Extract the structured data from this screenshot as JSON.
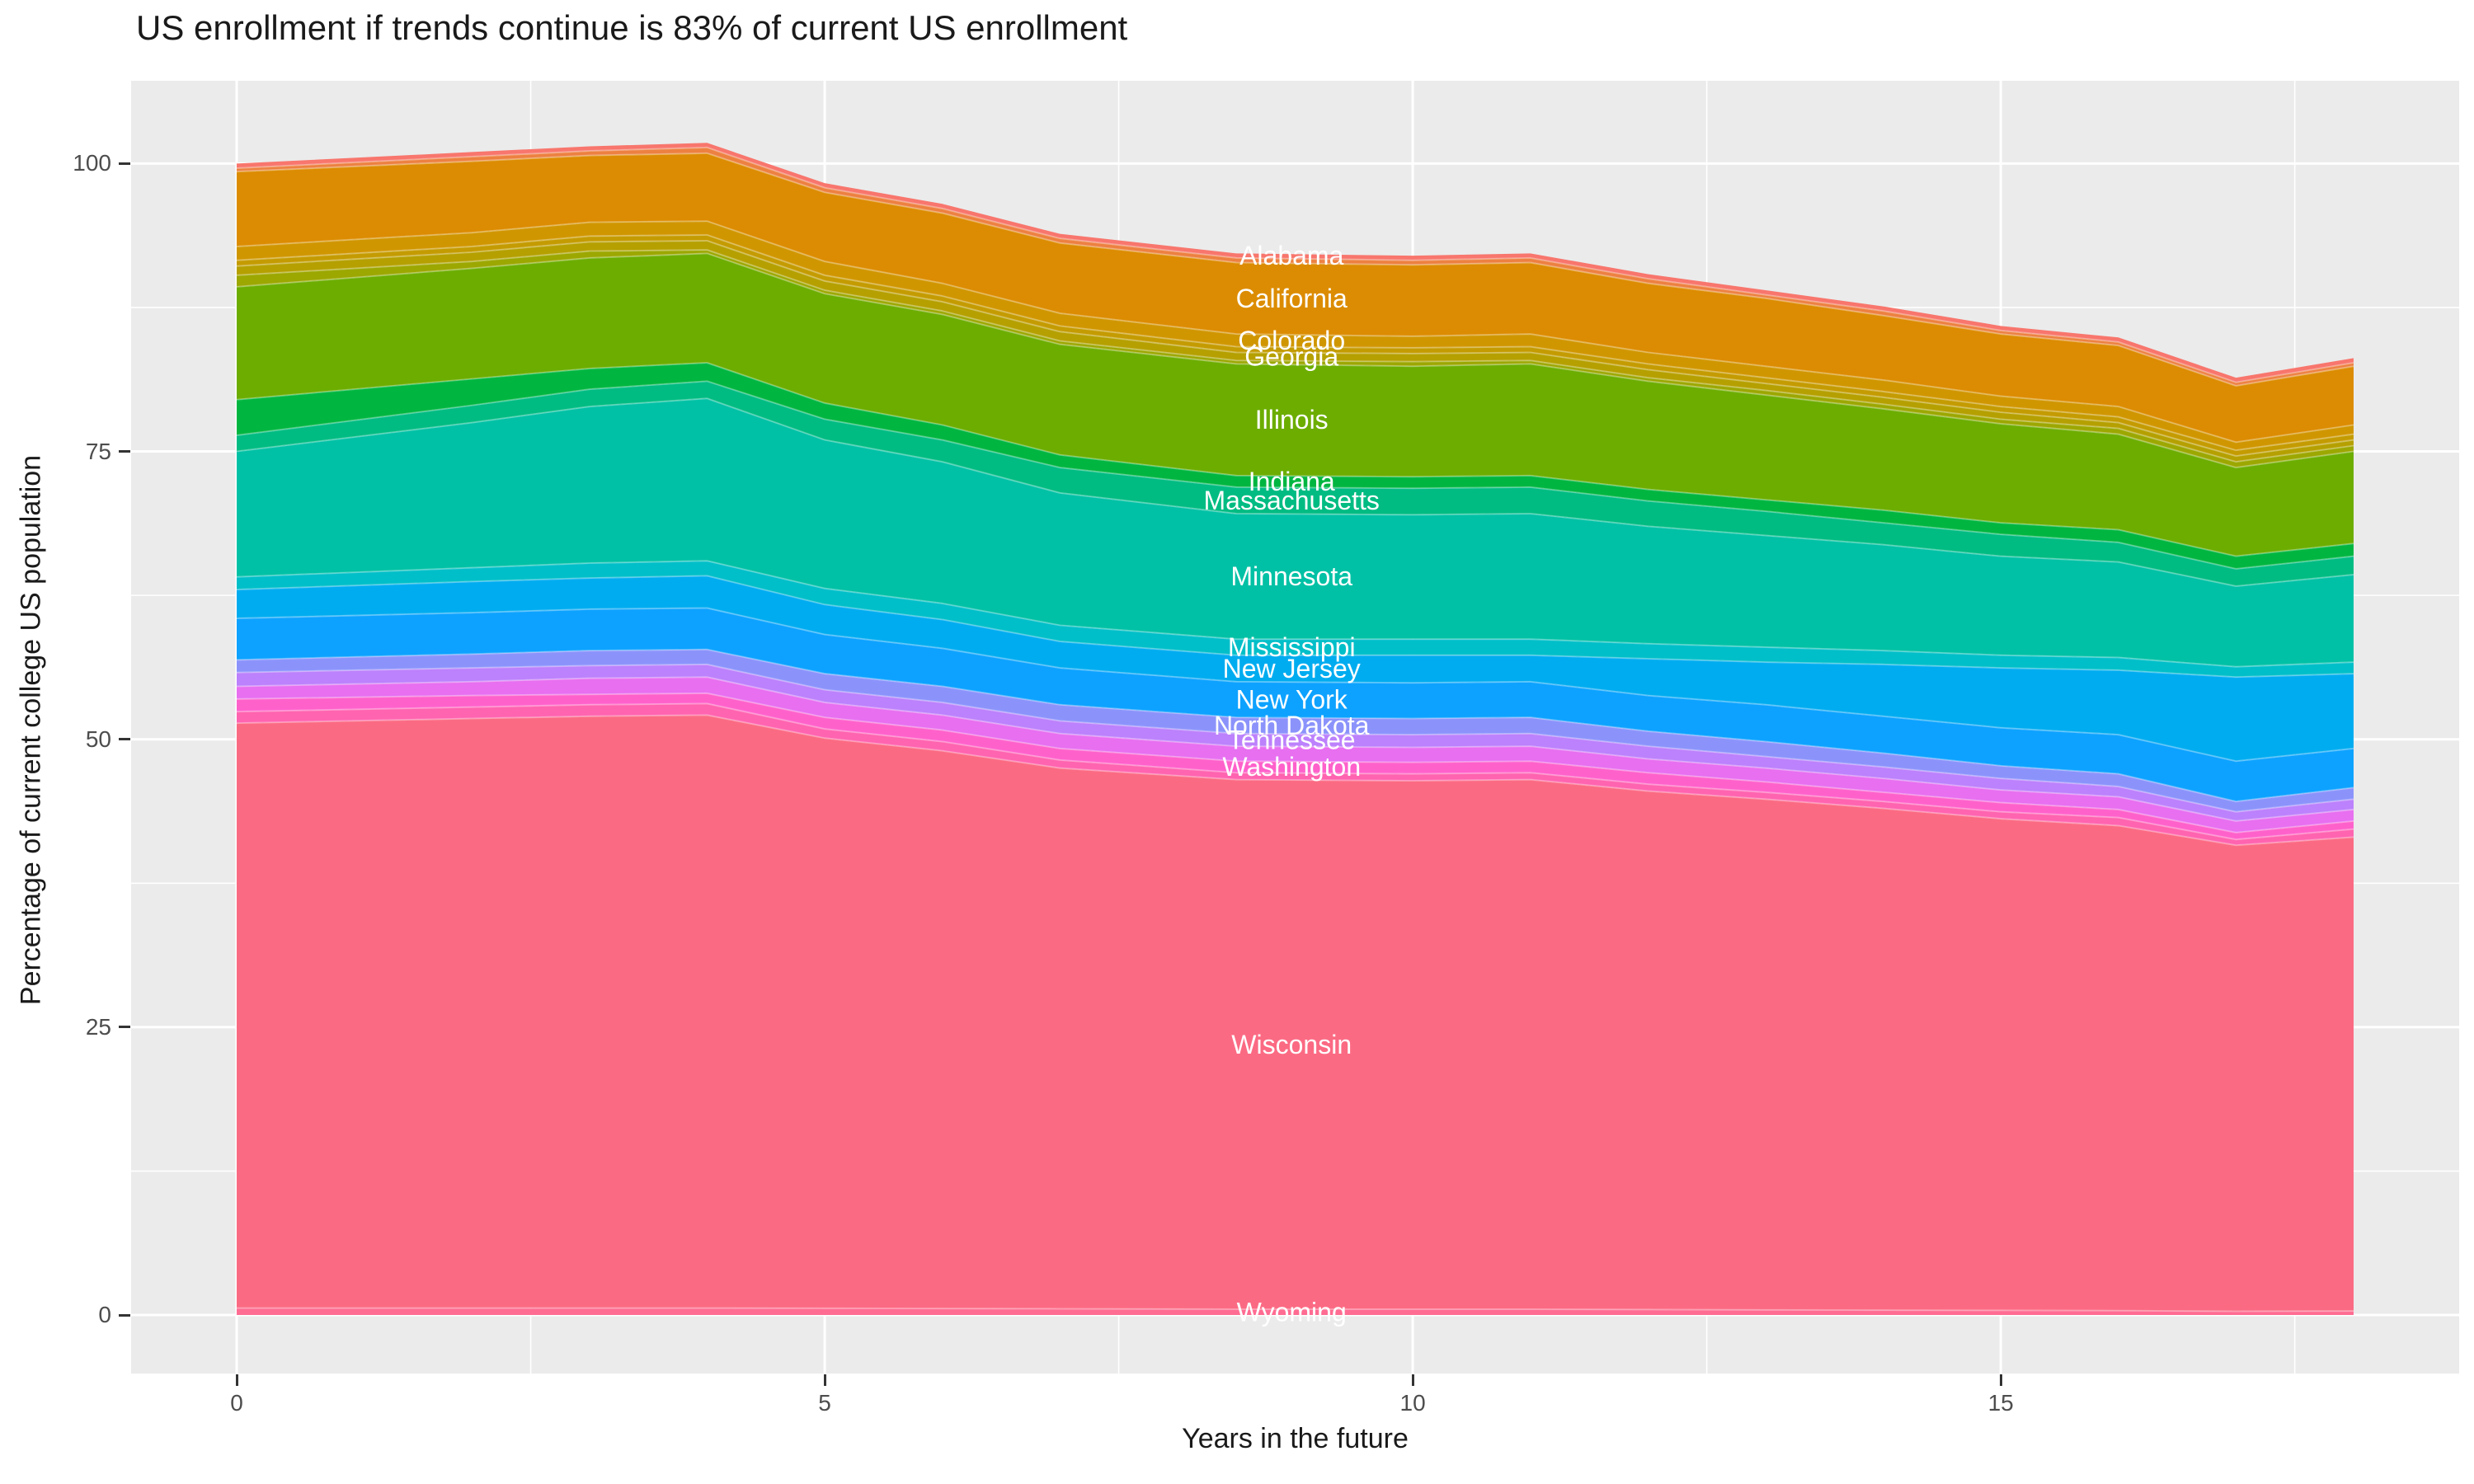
{
  "title": "US enrollment if trends continue is 83% of current US enrollment",
  "panel": {
    "bg": "#EBEBEB",
    "grid_color": "#FFFFFF",
    "tick_color": "#333333",
    "tick_label_color": "#4D4D4D"
  },
  "chart_data": {
    "type": "area",
    "stacked": true,
    "title": "US enrollment if trends continue is 83% of current US enrollment",
    "xlabel": "Years in the future",
    "ylabel": "Percentage of current college US population",
    "legend_position": "none",
    "grid": "on",
    "xlim": [
      -0.9,
      18.9
    ],
    "ylim": [
      -7,
      112
    ],
    "x_ticks": [
      0,
      5,
      10,
      15
    ],
    "y_ticks": [
      0,
      25,
      50,
      75,
      100
    ],
    "x_minor_ticks": [
      2.5,
      7.5,
      12.5,
      17.5
    ],
    "y_minor_ticks": [
      12.5,
      37.5,
      62.5,
      87.5
    ],
    "label_x": 8.97,
    "label_color": "#FFFFFF",
    "x": [
      0,
      2,
      3,
      4,
      5,
      6,
      7,
      8.5,
      10,
      11,
      12,
      13,
      14,
      15,
      16,
      17,
      18
    ],
    "bands_note": "bands ordered top to bottom; 'top' is the cumulative upper boundary (percent) at each x; each band fills down to the next band's top, last band fills to 0",
    "bands": [
      {
        "name": "Alabama",
        "label": "Alabama",
        "color": "#F8766D",
        "top": [
          100,
          101,
          101.5,
          101.8,
          98.3,
          96.5,
          93.9,
          92.2,
          92,
          92.2,
          90.4,
          89,
          87.6,
          85.9,
          84.9,
          81.4,
          83.1
        ]
      },
      {
        "name": "unlabeled-1",
        "label": "",
        "color": "#ED8141",
        "top": [
          99.6,
          100.6,
          101.1,
          101.4,
          97.9,
          96.1,
          93.5,
          91.8,
          91.6,
          91.8,
          90,
          88.6,
          87.2,
          85.5,
          84.5,
          81,
          82.7
        ]
      },
      {
        "name": "California",
        "label": "California",
        "color": "#DC8C02",
        "top": [
          99.3,
          100.2,
          100.7,
          100.9,
          97.5,
          95.7,
          93.1,
          91.4,
          91.2,
          91.4,
          89.6,
          88.3,
          86.8,
          85.2,
          84.2,
          80.7,
          82.4
        ]
      },
      {
        "name": "Colorado",
        "label": "Colorado",
        "color": "#D09600",
        "top": [
          92.8,
          94,
          94.9,
          95,
          91.5,
          89.6,
          87,
          85.2,
          85,
          85.2,
          83.6,
          82.4,
          81.2,
          79.8,
          78.9,
          75.8,
          77.3
        ]
      },
      {
        "name": "unlabeled-2",
        "label": "",
        "color": "#C49B00",
        "top": [
          91.6,
          92.8,
          93.7,
          93.8,
          90.3,
          88.5,
          85.9,
          84.1,
          84,
          84.1,
          82.6,
          81.4,
          80.2,
          78.9,
          78,
          75.1,
          76.5
        ]
      },
      {
        "name": "Georgia",
        "label": "Georgia",
        "color": "#B5A000",
        "top": [
          91.1,
          92.3,
          93.2,
          93.3,
          89.8,
          88,
          85.4,
          83.6,
          83.5,
          83.6,
          82.1,
          80.9,
          79.7,
          78.4,
          77.5,
          74.6,
          76
        ]
      },
      {
        "name": "unlabeled-3",
        "label": "",
        "color": "#9CA700",
        "top": [
          90.3,
          91.5,
          92.4,
          92.5,
          89,
          87.2,
          84.6,
          82.9,
          82.8,
          82.9,
          81.4,
          80.3,
          79.1,
          77.8,
          77,
          74.1,
          75.5
        ]
      },
      {
        "name": "Illinois",
        "label": "Illinois",
        "color": "#6CAD00",
        "top": [
          89.3,
          90.9,
          91.8,
          92.2,
          88.7,
          86.9,
          84.3,
          82.6,
          82.4,
          82.6,
          81.1,
          79.9,
          78.7,
          77.4,
          76.5,
          73.6,
          75
        ]
      },
      {
        "name": "Indiana",
        "label": "Indiana",
        "color": "#00B640",
        "top": [
          79.5,
          81.3,
          82.2,
          82.7,
          79.2,
          77.3,
          74.7,
          72.9,
          72.8,
          72.9,
          71.7,
          70.8,
          69.9,
          68.8,
          68.2,
          65.9,
          67
        ]
      },
      {
        "name": "Massachusetts",
        "label": "Massachusetts",
        "color": "#00BC82",
        "top": [
          76.4,
          79,
          80.4,
          81.1,
          77.8,
          76,
          73.6,
          71.9,
          71.8,
          71.9,
          70.7,
          69.8,
          68.8,
          67.8,
          67.1,
          64.8,
          65.9
        ]
      },
      {
        "name": "Minnesota",
        "label": "Minnesota",
        "color": "#00C1A5",
        "top": [
          75,
          77.5,
          78.9,
          79.6,
          76,
          74.1,
          71.4,
          69.6,
          69.5,
          69.6,
          68.5,
          67.7,
          66.9,
          65.9,
          65.4,
          63.3,
          64.3
        ]
      },
      {
        "name": "Mississippi",
        "label": "Mississippi",
        "color": "#00BFC8",
        "top": [
          64.1,
          64.9,
          65.3,
          65.5,
          63.1,
          61.8,
          59.9,
          58.7,
          58.7,
          58.7,
          58.3,
          58,
          57.7,
          57.3,
          57.1,
          56.3,
          56.7
        ]
      },
      {
        "name": "New Jersey",
        "label": "New Jersey",
        "color": "#00ACF0",
        "top": [
          63,
          63.7,
          64,
          64.2,
          61.7,
          60.4,
          58.5,
          57.3,
          57.3,
          57.3,
          57,
          56.7,
          56.5,
          56.2,
          56,
          55.4,
          55.7
        ]
      },
      {
        "name": "New York",
        "label": "New York",
        "color": "#0DA2FF",
        "top": [
          60.5,
          61,
          61.3,
          61.4,
          59.1,
          57.9,
          56.2,
          55,
          54.9,
          55,
          53.8,
          53,
          52,
          51,
          50.4,
          48.1,
          49.2
        ]
      },
      {
        "name": "North Dakota",
        "label": "North Dakota",
        "color": "#8B93FB",
        "top": [
          56.9,
          57.4,
          57.7,
          57.8,
          55.7,
          54.6,
          53,
          51.9,
          51.8,
          51.9,
          50.7,
          49.8,
          48.8,
          47.7,
          47,
          44.6,
          45.8
        ]
      },
      {
        "name": "Tennessee",
        "label": "Tennessee",
        "color": "#BC81FC",
        "top": [
          55.8,
          56.2,
          56.4,
          56.5,
          54.3,
          53.2,
          51.6,
          50.5,
          50.4,
          50.5,
          49.4,
          48.5,
          47.6,
          46.6,
          45.9,
          43.7,
          44.8
        ]
      },
      {
        "name": "unlabeled-4",
        "label": "",
        "color": "#E76FF0",
        "top": [
          54.6,
          55,
          55.3,
          55.4,
          53.2,
          52.1,
          50.5,
          49.4,
          49.3,
          49.4,
          48.3,
          47.5,
          46.6,
          45.6,
          45,
          42.9,
          43.9
        ]
      },
      {
        "name": "Washington",
        "label": "Washington",
        "color": "#FF61CB",
        "top": [
          53.5,
          53.8,
          53.9,
          54,
          51.9,
          50.8,
          49.2,
          48.1,
          48,
          48.1,
          47.1,
          46.3,
          45.4,
          44.5,
          43.9,
          41.9,
          42.9
        ]
      },
      {
        "name": "unlabeled-5",
        "label": "",
        "color": "#FF64B0",
        "top": [
          52.4,
          52.8,
          53,
          53.1,
          50.9,
          49.8,
          48.2,
          47.1,
          47,
          47.1,
          46.1,
          45.4,
          44.6,
          43.7,
          43.2,
          41.3,
          42.2
        ]
      },
      {
        "name": "Wisconsin",
        "label": "Wisconsin",
        "color": "#FB6A83",
        "top": [
          51.4,
          51.8,
          52,
          52.1,
          50.1,
          49,
          47.5,
          46.5,
          46.4,
          46.5,
          45.5,
          44.8,
          44,
          43.1,
          42.5,
          40.8,
          41.5
        ]
      },
      {
        "name": "Wyoming",
        "label": "Wyoming",
        "color": "#FF6C92",
        "top": [
          0.6,
          0.6,
          0.6,
          0.6,
          0.58,
          0.56,
          0.54,
          0.5,
          0.5,
          0.5,
          0.47,
          0.44,
          0.42,
          0.4,
          0.38,
          0.32,
          0.35
        ]
      }
    ]
  }
}
